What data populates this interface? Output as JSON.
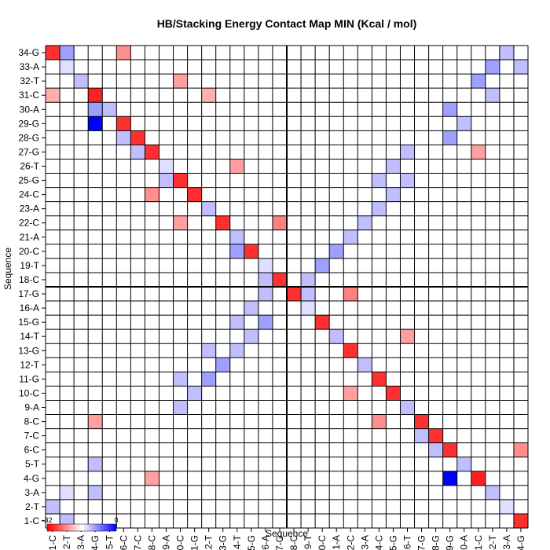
{
  "chart_data": {
    "type": "heatmap",
    "title": "HB/Stacking Energy Contact Map MIN (Kcal / mol)",
    "xlabel": "Sequence",
    "ylabel": "Sequence",
    "labels": [
      "1-C",
      "2-T",
      "3-A",
      "4-G",
      "5-T",
      "6-C",
      "7-C",
      "8-C",
      "9-A",
      "10-C",
      "11-G",
      "12-T",
      "13-G",
      "14-T",
      "15-G",
      "16-A",
      "17-G",
      "18-C",
      "19-T",
      "20-C",
      "21-A",
      "22-C",
      "23-A",
      "24-C",
      "25-G",
      "26-T",
      "27-G",
      "28-G",
      "29-G",
      "30-A",
      "31-C",
      "32-T",
      "33-A",
      "34-G"
    ],
    "colorbar": {
      "min": -32,
      "max": 0,
      "low_color": "#ff0000",
      "mid_color": "#ffffff",
      "high_color": "#0000ff",
      "labels": [
        "-32",
        "0"
      ]
    },
    "grid": true,
    "divider_after": "17-G",
    "cells": [
      {
        "row": "34-G",
        "col": "1-C",
        "value": -29
      },
      {
        "row": "34-G",
        "col": "2-T",
        "value": -10
      },
      {
        "row": "34-G",
        "col": "6-C",
        "value": -23
      },
      {
        "row": "34-G",
        "col": "33-A",
        "value": -12
      },
      {
        "row": "33-A",
        "col": "2-T",
        "value": -14
      },
      {
        "row": "33-A",
        "col": "32-T",
        "value": -10
      },
      {
        "row": "33-A",
        "col": "34-G",
        "value": -12
      },
      {
        "row": "32-T",
        "col": "3-A",
        "value": -12
      },
      {
        "row": "32-T",
        "col": "10-C",
        "value": -22
      },
      {
        "row": "32-T",
        "col": "31-C",
        "value": -10
      },
      {
        "row": "31-C",
        "col": "1-C",
        "value": -21
      },
      {
        "row": "31-C",
        "col": "4-G",
        "value": -30
      },
      {
        "row": "31-C",
        "col": "12-T",
        "value": -21
      },
      {
        "row": "31-C",
        "col": "32-T",
        "value": -12
      },
      {
        "row": "30-A",
        "col": "4-G",
        "value": -10
      },
      {
        "row": "30-A",
        "col": "5-T",
        "value": -12
      },
      {
        "row": "30-A",
        "col": "29-G",
        "value": -10
      },
      {
        "row": "29-G",
        "col": "4-G",
        "value": 0
      },
      {
        "row": "29-G",
        "col": "6-C",
        "value": -29
      },
      {
        "row": "29-G",
        "col": "30-A",
        "value": -12
      },
      {
        "row": "28-G",
        "col": "6-C",
        "value": -12
      },
      {
        "row": "28-G",
        "col": "7-C",
        "value": -29
      },
      {
        "row": "28-G",
        "col": "29-G",
        "value": -10
      },
      {
        "row": "27-G",
        "col": "7-C",
        "value": -12
      },
      {
        "row": "27-G",
        "col": "8-C",
        "value": -29
      },
      {
        "row": "27-G",
        "col": "26-T",
        "value": -12
      },
      {
        "row": "27-G",
        "col": "31-C",
        "value": -22
      },
      {
        "row": "26-T",
        "col": "9-A",
        "value": -14
      },
      {
        "row": "26-T",
        "col": "14-T",
        "value": -22
      },
      {
        "row": "26-T",
        "col": "25-G",
        "value": -12
      },
      {
        "row": "25-G",
        "col": "10-C",
        "value": -29
      },
      {
        "row": "25-G",
        "col": "9-A",
        "value": -12
      },
      {
        "row": "25-G",
        "col": "24-C",
        "value": -12
      },
      {
        "row": "25-G",
        "col": "26-T",
        "value": -12
      },
      {
        "row": "24-C",
        "col": "11-G",
        "value": -29
      },
      {
        "row": "24-C",
        "col": "8-C",
        "value": -23
      },
      {
        "row": "24-C",
        "col": "25-G",
        "value": -12
      },
      {
        "row": "23-A",
        "col": "12-T",
        "value": -12
      },
      {
        "row": "23-A",
        "col": "24-C",
        "value": -12
      },
      {
        "row": "22-C",
        "col": "13-G",
        "value": -29
      },
      {
        "row": "22-C",
        "col": "17-G",
        "value": -24
      },
      {
        "row": "22-C",
        "col": "10-C",
        "value": -22
      },
      {
        "row": "22-C",
        "col": "23-A",
        "value": -12
      },
      {
        "row": "21-A",
        "col": "14-T",
        "value": -12
      },
      {
        "row": "21-A",
        "col": "22-C",
        "value": -12
      },
      {
        "row": "20-C",
        "col": "15-G",
        "value": -29
      },
      {
        "row": "20-C",
        "col": "14-T",
        "value": -10
      },
      {
        "row": "20-C",
        "col": "21-A",
        "value": -10
      },
      {
        "row": "19-T",
        "col": "16-A",
        "value": -14
      },
      {
        "row": "19-T",
        "col": "20-C",
        "value": -10
      },
      {
        "row": "18-C",
        "col": "17-G",
        "value": -29
      },
      {
        "row": "18-C",
        "col": "16-A",
        "value": -12
      },
      {
        "row": "18-C",
        "col": "19-T",
        "value": -12
      },
      {
        "row": "17-G",
        "col": "18-C",
        "value": -29
      },
      {
        "row": "17-G",
        "col": "16-A",
        "value": -12
      },
      {
        "row": "17-G",
        "col": "19-T",
        "value": -12
      },
      {
        "row": "17-G",
        "col": "22-C",
        "value": -24
      },
      {
        "row": "16-A",
        "col": "15-G",
        "value": -12
      },
      {
        "row": "16-A",
        "col": "19-T",
        "value": -14
      },
      {
        "row": "15-G",
        "col": "20-C",
        "value": -29
      },
      {
        "row": "15-G",
        "col": "14-T",
        "value": -12
      },
      {
        "row": "15-G",
        "col": "16-A",
        "value": -10
      },
      {
        "row": "14-T",
        "col": "21-A",
        "value": -12
      },
      {
        "row": "14-T",
        "col": "15-G",
        "value": -12
      },
      {
        "row": "14-T",
        "col": "26-T",
        "value": -22
      },
      {
        "row": "13-G",
        "col": "22-C",
        "value": -29
      },
      {
        "row": "13-G",
        "col": "12-T",
        "value": -12
      },
      {
        "row": "13-G",
        "col": "14-T",
        "value": -12
      },
      {
        "row": "12-T",
        "col": "23-A",
        "value": -12
      },
      {
        "row": "12-T",
        "col": "13-G",
        "value": -10
      },
      {
        "row": "11-G",
        "col": "24-C",
        "value": -29
      },
      {
        "row": "11-G",
        "col": "10-C",
        "value": -12
      },
      {
        "row": "11-G",
        "col": "12-T",
        "value": -10
      },
      {
        "row": "10-C",
        "col": "25-G",
        "value": -29
      },
      {
        "row": "10-C",
        "col": "11-G",
        "value": -12
      },
      {
        "row": "10-C",
        "col": "22-C",
        "value": -22
      },
      {
        "row": "9-A",
        "col": "26-T",
        "value": -12
      },
      {
        "row": "9-A",
        "col": "10-C",
        "value": -12
      },
      {
        "row": "8-C",
        "col": "27-G",
        "value": -29
      },
      {
        "row": "8-C",
        "col": "24-C",
        "value": -23
      },
      {
        "row": "8-C",
        "col": "4-G",
        "value": -22
      },
      {
        "row": "7-C",
        "col": "28-G",
        "value": -29
      },
      {
        "row": "7-C",
        "col": "27-G",
        "value": -12
      },
      {
        "row": "6-C",
        "col": "29-G",
        "value": -29
      },
      {
        "row": "6-C",
        "col": "28-G",
        "value": -12
      },
      {
        "row": "6-C",
        "col": "34-G",
        "value": -23
      },
      {
        "row": "5-T",
        "col": "30-A",
        "value": -12
      },
      {
        "row": "5-T",
        "col": "4-G",
        "value": -12
      },
      {
        "row": "4-G",
        "col": "31-C",
        "value": -30
      },
      {
        "row": "4-G",
        "col": "29-G",
        "value": 0
      },
      {
        "row": "4-G",
        "col": "8-C",
        "value": -22
      },
      {
        "row": "3-A",
        "col": "32-T",
        "value": -12
      },
      {
        "row": "3-A",
        "col": "2-T",
        "value": -14
      },
      {
        "row": "3-A",
        "col": "4-G",
        "value": -12
      },
      {
        "row": "2-T",
        "col": "33-A",
        "value": -14
      },
      {
        "row": "2-T",
        "col": "1-C",
        "value": -12
      },
      {
        "row": "1-C",
        "col": "34-G",
        "value": -29
      },
      {
        "row": "1-C",
        "col": "2-T",
        "value": -12
      }
    ]
  }
}
